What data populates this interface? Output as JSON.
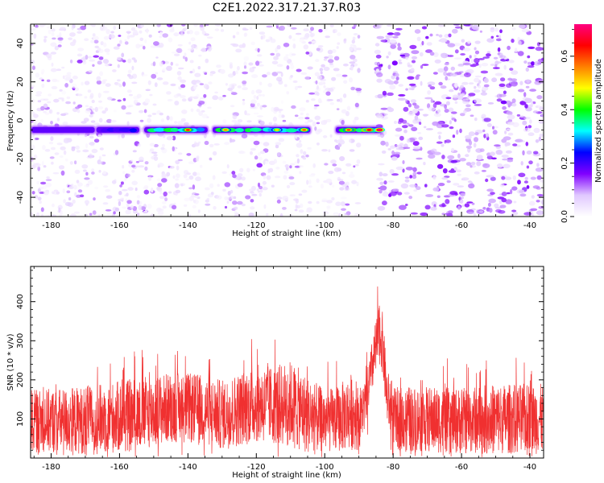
{
  "title": "C2E1.2022.317.21.37.R03",
  "chart_data": [
    {
      "type": "heatmap",
      "xlabel": "Height of straight line (km)",
      "ylabel": "Frequency (Hz)",
      "xlim": [
        -186,
        -36
      ],
      "ylim": [
        -50,
        50
      ],
      "x_ticks": [
        -180,
        -160,
        -140,
        -120,
        -100,
        -80,
        -60,
        -40
      ],
      "y_ticks": [
        -40,
        -20,
        0,
        20,
        40
      ],
      "colorbar": {
        "label": "Normalized spectral amplitude",
        "range": [
          0,
          0.72
        ],
        "ticks": [
          "0.0",
          "0.2",
          "0.4",
          "0.6"
        ],
        "stops": [
          "#ffffff",
          "#e0c8ff",
          "#8000ff",
          "#0000ff",
          "#00ffff",
          "#00ff00",
          "#ffff00",
          "#ff8000",
          "#ff0000",
          "#ff0080"
        ]
      },
      "dense_noise_region": [
        -85,
        -36
      ],
      "signal_band": {
        "center_frequency": -5,
        "segments": [
          {
            "x_start": -186,
            "x_end": -167,
            "amplitude": 0.22
          },
          {
            "x_start": -167,
            "x_end": -154,
            "amplitude": 0.33
          },
          {
            "x_start": -153,
            "x_end": -134,
            "amplitude": 0.5
          },
          {
            "x_start": -133,
            "x_end": -104,
            "amplitude": 0.48
          },
          {
            "x_start": -97,
            "x_end": -83,
            "amplitude": 0.6
          }
        ],
        "peaks": [
          {
            "x": -140,
            "amplitude": 0.62
          },
          {
            "x": -129,
            "amplitude": 0.55
          },
          {
            "x": -114,
            "amplitude": 0.5
          },
          {
            "x": -106,
            "amplitude": 0.58
          },
          {
            "x": -93,
            "amplitude": 0.6
          },
          {
            "x": -87,
            "amplitude": 0.66
          },
          {
            "x": -84,
            "amplitude": 0.72
          }
        ]
      }
    },
    {
      "type": "line",
      "xlabel": "Height of straight line (km)",
      "ylabel": "SNR (10 * v/v)",
      "xlim": [
        -186,
        -36
      ],
      "ylim": [
        0,
        490
      ],
      "x_ticks": [
        -180,
        -160,
        -140,
        -120,
        -100,
        -80,
        -60,
        -40
      ],
      "y_ticks": [
        100,
        200,
        300,
        400
      ],
      "color": "#f03030",
      "envelope": {
        "x": [
          -186,
          -175,
          -165,
          -155,
          -145,
          -136,
          -130,
          -120,
          -115,
          -110,
          -105,
          -100,
          -96,
          -92,
          -90,
          -88,
          -86,
          -84,
          -83,
          -82,
          -80,
          -75,
          -60,
          -50,
          -36
        ],
        "mean": [
          95,
          95,
          100,
          110,
          130,
          125,
          110,
          140,
          135,
          140,
          110,
          95,
          100,
          120,
          100,
          140,
          240,
          320,
          290,
          170,
          100,
          100,
          95,
          100,
          100
        ],
        "spread": [
          80,
          85,
          90,
          95,
          90,
          90,
          90,
          100,
          100,
          110,
          100,
          80,
          85,
          100,
          80,
          60,
          70,
          80,
          80,
          70,
          80,
          85,
          85,
          90,
          90
        ]
      }
    }
  ]
}
